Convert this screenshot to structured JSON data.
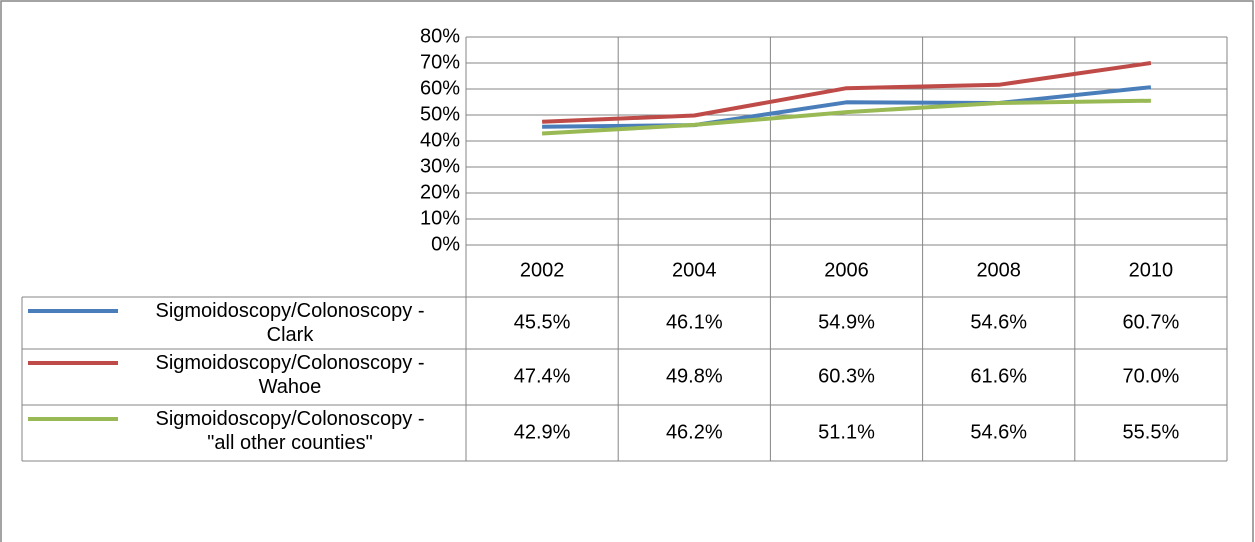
{
  "chart_data": {
    "type": "line",
    "categories": [
      "2002",
      "2004",
      "2006",
      "2008",
      "2010"
    ],
    "series": [
      {
        "name": "Sigmoidoscopy/Colonoscopy - Clark",
        "color": "#4a7ebb",
        "values": [
          45.5,
          46.1,
          54.9,
          54.6,
          60.7
        ],
        "value_labels": [
          "45.5%",
          "46.1%",
          "54.9%",
          "54.6%",
          "60.7%"
        ]
      },
      {
        "name": "Sigmoidoscopy/Colonoscopy - Wahoe",
        "color": "#be4b48",
        "values": [
          47.4,
          49.8,
          60.3,
          61.6,
          70.0
        ],
        "value_labels": [
          "47.4%",
          "49.8%",
          "60.3%",
          "61.6%",
          "70.0%"
        ]
      },
      {
        "name": "Sigmoidoscopy/Colonoscopy - \"all other counties\"",
        "color": "#98b954",
        "values": [
          42.9,
          46.2,
          51.1,
          54.6,
          55.5
        ],
        "value_labels": [
          "42.9%",
          "46.2%",
          "51.1%",
          "54.6%",
          "55.5%"
        ]
      }
    ],
    "ylim": [
      0,
      80
    ],
    "yticks": [
      {
        "value": 0,
        "label": "0%"
      },
      {
        "value": 10,
        "label": "10%"
      },
      {
        "value": 20,
        "label": "20%"
      },
      {
        "value": 30,
        "label": "30%"
      },
      {
        "value": 40,
        "label": "40%"
      },
      {
        "value": 50,
        "label": "50%"
      },
      {
        "value": 60,
        "label": "60%"
      },
      {
        "value": 70,
        "label": "70%"
      },
      {
        "value": 80,
        "label": "80%"
      }
    ],
    "grid": true
  }
}
